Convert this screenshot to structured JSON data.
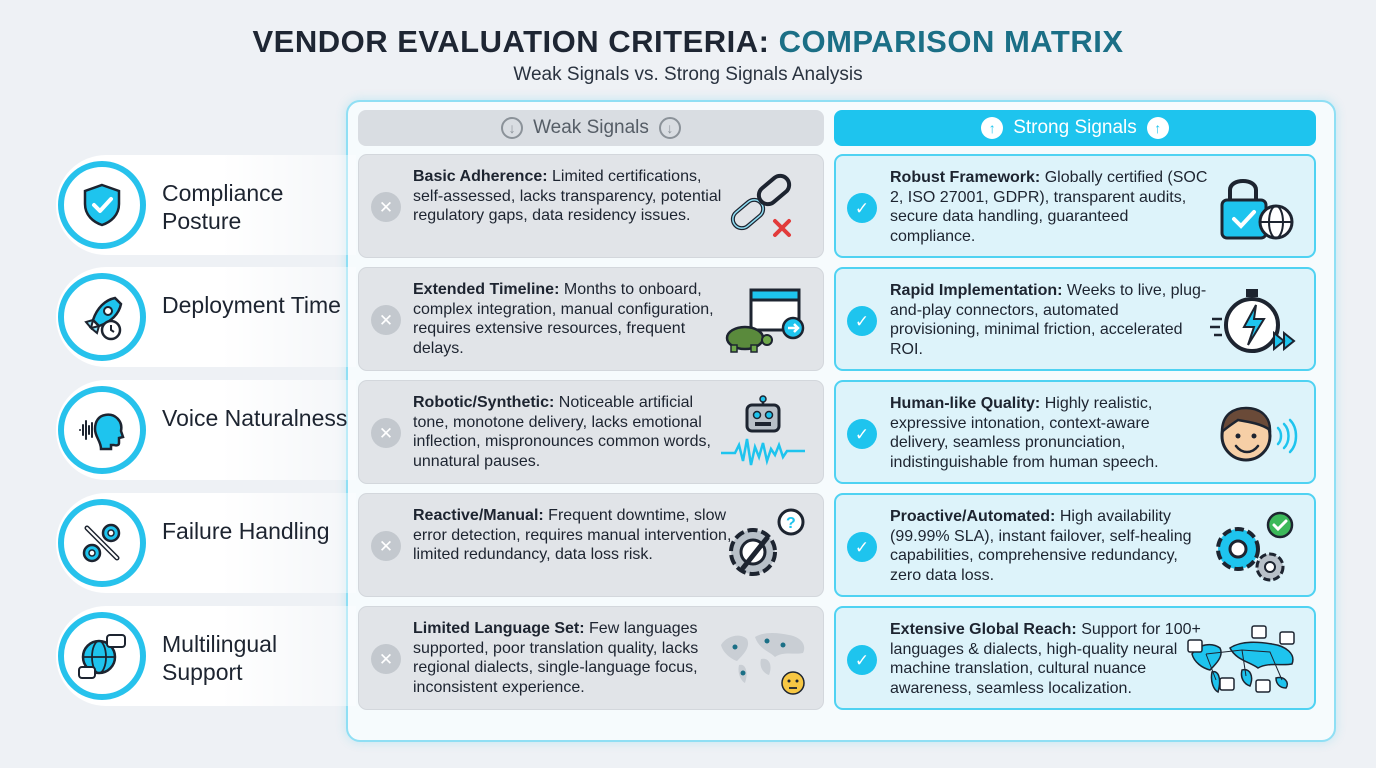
{
  "title": {
    "main": "VENDOR EVALUATION CRITERIA:",
    "accent": "COMPARISON MATRIX"
  },
  "subtitle": "Weak Signals vs. Strong Signals Analysis",
  "columns": {
    "weak": "Weak Signals",
    "strong": "Strong Signals"
  },
  "colors": {
    "accent": "#1ec4ee",
    "weak_bg": "#e1e4e8",
    "strong_bg": "#ddf3fa",
    "title_accent": "#1b6f86"
  },
  "rows": [
    {
      "label": "Compliance Posture",
      "icon": "shield-check-icon",
      "weak": {
        "title": "Basic Adherence:",
        "text": "Limited certifications, self-assessed, lacks transparency, potential regulatory gaps, data residency issues.",
        "icon": "broken-chain-icon"
      },
      "strong": {
        "title": "Robust Framework:",
        "text": "Globally certified (SOC 2, ISO 27001, GDPR), transparent audits, secure data handling, guaranteed compliance.",
        "icon": "padlock-globe-icon"
      }
    },
    {
      "label": "Deployment Time",
      "icon": "rocket-clock-icon",
      "weak": {
        "title": "Extended Timeline:",
        "text": "Months to onboard, complex integration, manual configuration, requires extensive resources, frequent delays.",
        "icon": "turtle-calendar-icon"
      },
      "strong": {
        "title": "Rapid Implementation:",
        "text": "Weeks to live, plug-and-play connectors, automated provisioning, minimal friction, accelerated ROI.",
        "icon": "stopwatch-lightning-icon"
      }
    },
    {
      "label": "Voice Naturalness",
      "icon": "voice-head-icon",
      "weak": {
        "title": "Robotic/Synthetic:",
        "text": "Noticeable artificial tone, monotone delivery, lacks emotional inflection, mispronounces common words, unnatural pauses.",
        "icon": "robot-waveform-icon"
      },
      "strong": {
        "title": "Human-like Quality:",
        "text": "Highly realistic, expressive intonation, context-aware delivery, seamless pronunciation, indistinguishable from human speech.",
        "icon": "smiling-person-icon"
      }
    },
    {
      "label": "Failure Handling",
      "icon": "gears-wrench-icon",
      "weak": {
        "title": "Reactive/Manual:",
        "text": "Frequent downtime, slow error detection, requires manual intervention, limited redundancy, data loss risk.",
        "icon": "gear-question-icon"
      },
      "strong": {
        "title": "Proactive/Automated:",
        "text": "High availability (99.99% SLA), instant failover, self-healing capabilities, comprehensive redundancy, zero data loss.",
        "icon": "gears-check-icon"
      }
    },
    {
      "label": "Multilingual Support",
      "icon": "globe-chat-icon",
      "weak": {
        "title": "Limited Language Set:",
        "text": "Few languages supported, poor translation quality, lacks regional dialects, single-language focus, inconsistent experience.",
        "icon": "sparse-world-map-icon"
      },
      "strong": {
        "title": "Extensive Global Reach:",
        "text": "Support for 100+ languages & dialects, high-quality neural machine translation, cultural nuance awareness, seamless localization.",
        "icon": "connected-world-map-icon"
      }
    }
  ]
}
